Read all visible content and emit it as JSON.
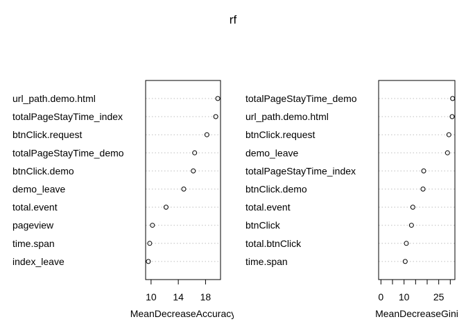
{
  "chart_data": [
    {
      "type": "scatter",
      "title": "rf",
      "xlabel": "MeanDecreaseAccuracy",
      "xlim": [
        9.2,
        20.2
      ],
      "xticks": [
        10,
        14,
        18
      ],
      "grid": "dotted-horizontal",
      "categories": [
        "url_path.demo.html",
        "totalPageStayTime_index",
        "btnClick.request",
        "totalPageStayTime_demo",
        "btnClick.demo",
        "demo_leave",
        "total.event",
        "pageview",
        "time.span",
        "index_leave"
      ],
      "values": [
        19.8,
        19.5,
        18.2,
        16.4,
        16.2,
        14.8,
        12.2,
        10.2,
        9.8,
        9.6
      ]
    },
    {
      "type": "scatter",
      "title": "",
      "xlabel": "MeanDecreaseGini",
      "xlim": [
        -1,
        32
      ],
      "xticks": [
        0,
        10,
        25
      ],
      "minor_ticks": [
        5,
        15,
        20,
        30
      ],
      "grid": "dotted-horizontal",
      "categories": [
        "totalPageStayTime_demo",
        "url_path.demo.html",
        "btnClick.request",
        "demo_leave",
        "totalPageStayTime_index",
        "btnClick.demo",
        "total.event",
        "btnClick",
        "total.btnClick",
        "time.span"
      ],
      "values": [
        31,
        30.8,
        29.4,
        28.8,
        18.5,
        18.2,
        13.8,
        13.2,
        11,
        10.5
      ]
    }
  ]
}
